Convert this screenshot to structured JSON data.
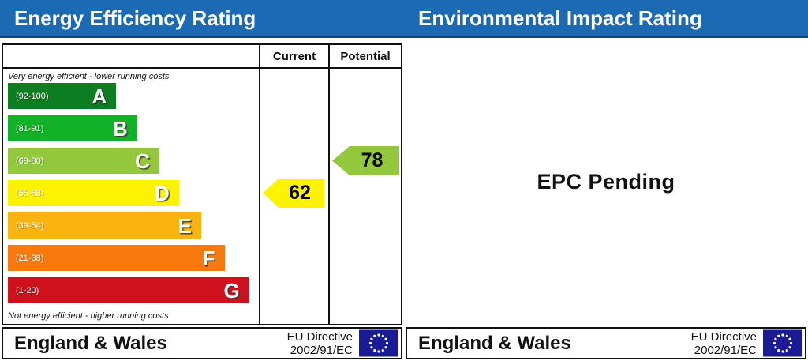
{
  "header": {
    "left_title": "Energy Efficiency Rating",
    "right_title": "Environmental Impact Rating",
    "bar_color": "#1c6ab4"
  },
  "table": {
    "columns": {
      "current": "Current",
      "potential": "Potential"
    },
    "top_caption": "Very energy efficient - lower running costs",
    "bottom_caption": "Not energy efficient - higher running costs"
  },
  "chart_data": {
    "type": "bar",
    "title": "Energy Efficiency Rating",
    "bands": [
      {
        "letter": "A",
        "range_label": "(92-100)",
        "range": [
          92,
          100
        ],
        "color": "#0c7d20",
        "width_pct": 44
      },
      {
        "letter": "B",
        "range_label": "(81-91)",
        "range": [
          81,
          91
        ],
        "color": "#12b228",
        "width_pct": 52.5
      },
      {
        "letter": "C",
        "range_label": "(69-80)",
        "range": [
          69,
          80
        ],
        "color": "#93c83d",
        "width_pct": 61.5
      },
      {
        "letter": "D",
        "range_label": "(55-68)",
        "range": [
          55,
          68
        ],
        "color": "#fdf200",
        "width_pct": 69.5
      },
      {
        "letter": "E",
        "range_label": "(39-54)",
        "range": [
          39,
          54
        ],
        "color": "#fab40f",
        "width_pct": 78.5
      },
      {
        "letter": "F",
        "range_label": "(21-38)",
        "range": [
          21,
          38
        ],
        "color": "#f8790e",
        "width_pct": 88
      },
      {
        "letter": "G",
        "range_label": "(1-20)",
        "range": [
          1,
          20
        ],
        "color": "#cf101d",
        "width_pct": 98
      }
    ],
    "series": [
      {
        "name": "Current",
        "value": 62,
        "band": "D",
        "band_index": 3,
        "color": "#fdf200"
      },
      {
        "name": "Potential",
        "value": 78,
        "band": "C",
        "band_index": 2,
        "color": "#93c83d"
      }
    ]
  },
  "right_panel": {
    "status_text": "EPC Pending"
  },
  "footer": {
    "region": "England & Wales",
    "directive_line1": "EU Directive",
    "directive_line2": "2002/91/EC",
    "flag_icon": "eu-flag",
    "flag_color": "#1b1b96"
  }
}
